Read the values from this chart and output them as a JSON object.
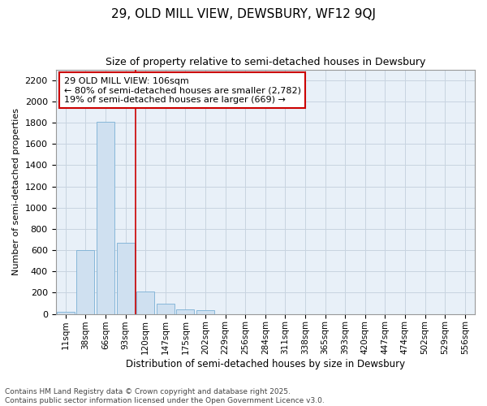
{
  "title1": "29, OLD MILL VIEW, DEWSBURY, WF12 9QJ",
  "title2": "Size of property relative to semi-detached houses in Dewsbury",
  "xlabel": "Distribution of semi-detached houses by size in Dewsbury",
  "ylabel": "Number of semi-detached properties",
  "categories": [
    "11sqm",
    "38sqm",
    "66sqm",
    "93sqm",
    "120sqm",
    "147sqm",
    "175sqm",
    "202sqm",
    "229sqm",
    "256sqm",
    "284sqm",
    "311sqm",
    "338sqm",
    "365sqm",
    "393sqm",
    "420sqm",
    "447sqm",
    "474sqm",
    "502sqm",
    "529sqm",
    "556sqm"
  ],
  "values": [
    20,
    600,
    1810,
    670,
    215,
    100,
    45,
    35,
    0,
    0,
    0,
    0,
    0,
    0,
    0,
    0,
    0,
    0,
    0,
    0,
    0
  ],
  "bar_color": "#cfe0f0",
  "bar_edge_color": "#7aafd4",
  "grid_color": "#c8d4e0",
  "background_color": "#ffffff",
  "plot_bg_color": "#e8f0f8",
  "vline_x_idx": 3,
  "vline_color": "#cc0000",
  "annotation_title": "29 OLD MILL VIEW: 106sqm",
  "annotation_line1": "← 80% of semi-detached houses are smaller (2,782)",
  "annotation_line2": "19% of semi-detached houses are larger (669) →",
  "annotation_box_facecolor": "#ffffff",
  "annotation_box_edgecolor": "#cc0000",
  "footer1": "Contains HM Land Registry data © Crown copyright and database right 2025.",
  "footer2": "Contains public sector information licensed under the Open Government Licence v3.0.",
  "ylim": [
    0,
    2300
  ],
  "yticks": [
    0,
    200,
    400,
    600,
    800,
    1000,
    1200,
    1400,
    1600,
    1800,
    2000,
    2200
  ],
  "title1_fontsize": 11,
  "title2_fontsize": 9,
  "xlabel_fontsize": 8.5,
  "ylabel_fontsize": 8,
  "xtick_fontsize": 7.5,
  "ytick_fontsize": 8,
  "annotation_fontsize": 8,
  "footer_fontsize": 6.5
}
